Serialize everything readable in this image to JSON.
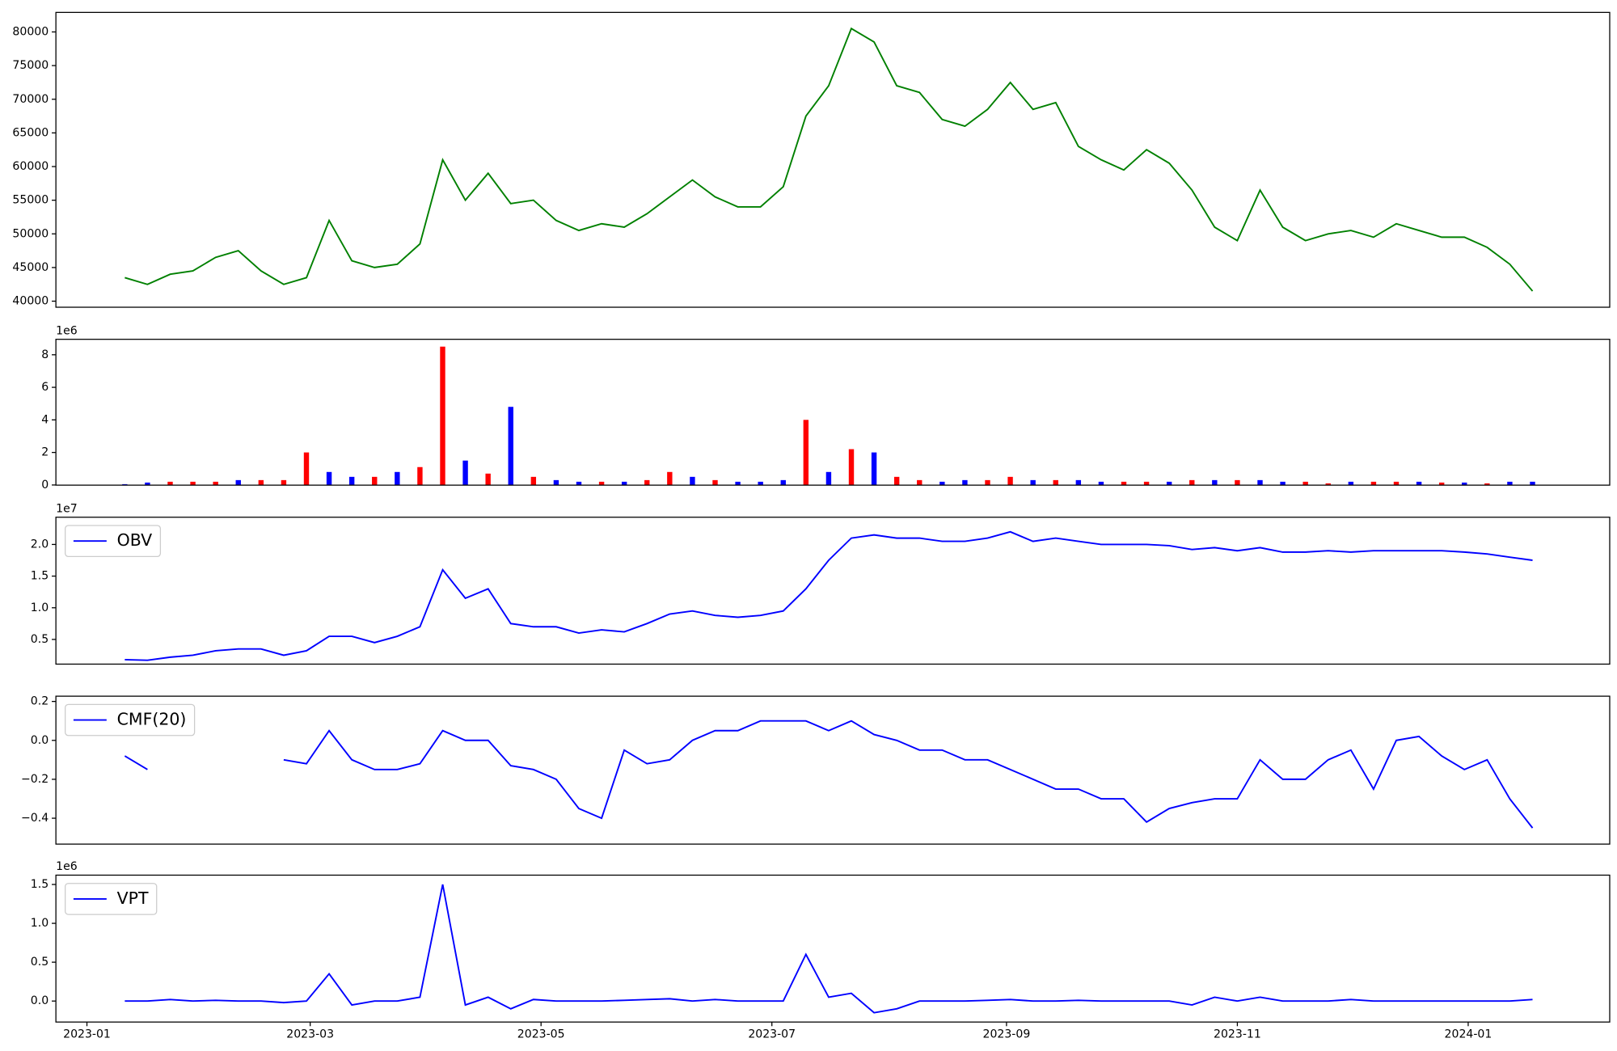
{
  "chart_data": [
    {
      "type": "line",
      "x": [
        10,
        16,
        22,
        28,
        34,
        40,
        46,
        52,
        58,
        64,
        70,
        76,
        82,
        88,
        94,
        100,
        106,
        112,
        118,
        124,
        130,
        136,
        142,
        148,
        154,
        160,
        166,
        172,
        178,
        184,
        190,
        196,
        202,
        208,
        214,
        220,
        226,
        232,
        238,
        244,
        250,
        256,
        262,
        268,
        274,
        280,
        286,
        292,
        298,
        304,
        310,
        316,
        322,
        328,
        334,
        340,
        346,
        352,
        358,
        364,
        370,
        376,
        382
      ],
      "series": [
        {
          "color": "green",
          "values": [
            43500,
            42500,
            44000,
            44500,
            46500,
            47500,
            44500,
            42500,
            43500,
            52000,
            46000,
            45000,
            45500,
            48500,
            61000,
            55000,
            59000,
            54500,
            55000,
            52000,
            50500,
            51500,
            51000,
            53000,
            55500,
            58000,
            55500,
            54000,
            54000,
            57000,
            67500,
            72000,
            80500,
            78500,
            72000,
            71000,
            67000,
            66000,
            68500,
            72500,
            68500,
            69500,
            63000,
            61000,
            59500,
            62500,
            60500,
            56500,
            51000,
            49000,
            56500,
            51000,
            49000,
            50000,
            50500,
            49500,
            51500,
            50500,
            49500,
            49500,
            48000,
            45500,
            41500
          ]
        }
      ],
      "xlim": [
        -8.2,
        402.4
      ],
      "ylim": [
        39100,
        82900
      ],
      "yticks": [
        40000,
        45000,
        50000,
        55000,
        60000,
        65000,
        70000,
        75000,
        80000
      ]
    },
    {
      "type": "bar",
      "x": [
        10,
        16,
        22,
        28,
        34,
        40,
        46,
        52,
        58,
        64,
        70,
        76,
        82,
        88,
        94,
        100,
        106,
        112,
        118,
        124,
        130,
        136,
        142,
        148,
        154,
        160,
        166,
        172,
        178,
        184,
        190,
        196,
        202,
        208,
        214,
        220,
        226,
        232,
        238,
        244,
        250,
        256,
        262,
        268,
        274,
        280,
        286,
        292,
        298,
        304,
        310,
        316,
        322,
        328,
        334,
        340,
        346,
        352,
        358,
        364,
        370,
        376,
        382
      ],
      "values": [
        50000,
        150000,
        200000,
        200000,
        200000,
        300000,
        300000,
        300000,
        2000000,
        800000,
        500000,
        500000,
        800000,
        1100000,
        8500000,
        1500000,
        700000,
        4800000,
        500000,
        300000,
        200000,
        200000,
        200000,
        300000,
        800000,
        500000,
        300000,
        200000,
        200000,
        300000,
        4000000,
        800000,
        2200000,
        2000000,
        500000,
        300000,
        200000,
        300000,
        300000,
        500000,
        300000,
        300000,
        300000,
        200000,
        200000,
        200000,
        200000,
        300000,
        300000,
        300000,
        300000,
        200000,
        200000,
        100000,
        200000,
        200000,
        200000,
        200000,
        150000,
        150000,
        100000,
        200000,
        200000
      ],
      "colors": [
        "blue",
        "blue",
        "red",
        "red",
        "red",
        "blue",
        "red",
        "red",
        "red",
        "blue",
        "blue",
        "red",
        "blue",
        "red",
        "red",
        "blue",
        "red",
        "blue",
        "red",
        "blue",
        "blue",
        "red",
        "blue",
        "red",
        "red",
        "blue",
        "red",
        "blue",
        "blue",
        "blue",
        "red",
        "blue",
        "red",
        "blue",
        "red",
        "red",
        "blue",
        "blue",
        "red",
        "red",
        "blue",
        "red",
        "blue",
        "blue",
        "red",
        "red",
        "blue",
        "red",
        "blue",
        "red",
        "blue",
        "blue",
        "red",
        "red",
        "blue",
        "red",
        "red",
        "blue",
        "red",
        "blue",
        "red",
        "blue",
        "blue"
      ],
      "xlim": [
        -8.2,
        402.4
      ],
      "ylim": [
        -10000,
        8950000
      ],
      "offset_label": "1e6",
      "yticks": [
        {
          "value": 0,
          "label": "0"
        },
        {
          "value": 2000000,
          "label": "2"
        },
        {
          "value": 4000000,
          "label": "4"
        },
        {
          "value": 6000000,
          "label": "6"
        },
        {
          "value": 8000000,
          "label": "8"
        }
      ]
    },
    {
      "type": "line",
      "x": [
        10,
        16,
        22,
        28,
        34,
        40,
        46,
        52,
        58,
        64,
        70,
        76,
        82,
        88,
        94,
        100,
        106,
        112,
        118,
        124,
        130,
        136,
        142,
        148,
        154,
        160,
        166,
        172,
        178,
        184,
        190,
        196,
        202,
        208,
        214,
        220,
        226,
        232,
        238,
        244,
        250,
        256,
        262,
        268,
        274,
        280,
        286,
        292,
        298,
        304,
        310,
        316,
        322,
        328,
        334,
        340,
        346,
        352,
        358,
        364,
        370,
        376,
        382
      ],
      "series": [
        {
          "name": "OBV",
          "color": "blue",
          "values": [
            1800000,
            1700000,
            2200000,
            2500000,
            3200000,
            3500000,
            3500000,
            2500000,
            3200000,
            5500000,
            5500000,
            4500000,
            5500000,
            7000000,
            16000000,
            11500000,
            13000000,
            7500000,
            7000000,
            7000000,
            6000000,
            6500000,
            6200000,
            7500000,
            9000000,
            9500000,
            8800000,
            8500000,
            8800000,
            9500000,
            13000000,
            17500000,
            21000000,
            21500000,
            21000000,
            21000000,
            20500000,
            20500000,
            21000000,
            22000000,
            20500000,
            21000000,
            20500000,
            20000000,
            20000000,
            20000000,
            19800000,
            19200000,
            19500000,
            19000000,
            19500000,
            18800000,
            18800000,
            19000000,
            18800000,
            19000000,
            19000000,
            19000000,
            19000000,
            18800000,
            18500000,
            18000000,
            17500000
          ]
        }
      ],
      "xlim": [
        -8.2,
        402.4
      ],
      "ylim": [
        1100000,
        24300000
      ],
      "offset_label": "1e7",
      "legend": "upper left",
      "yticks": [
        {
          "value": 5000000,
          "label": "0.5"
        },
        {
          "value": 10000000,
          "label": "1.0"
        },
        {
          "value": 15000000,
          "label": "1.5"
        },
        {
          "value": 20000000,
          "label": "2.0"
        }
      ]
    },
    {
      "type": "line",
      "x": [
        10,
        16,
        22,
        28,
        34,
        40,
        46,
        52,
        58,
        64,
        70,
        76,
        82,
        88,
        94,
        100,
        106,
        112,
        118,
        124,
        130,
        136,
        142,
        148,
        154,
        160,
        166,
        172,
        178,
        184,
        190,
        196,
        202,
        208,
        214,
        220,
        226,
        232,
        238,
        244,
        250,
        256,
        262,
        268,
        274,
        280,
        286,
        292,
        298,
        304,
        310,
        316,
        322,
        328,
        334,
        340,
        346,
        352,
        358,
        364,
        370,
        376,
        382
      ],
      "series": [
        {
          "name": "CMF(20)",
          "color": "blue",
          "values": [
            -0.08,
            -0.15,
            null,
            null,
            null,
            null,
            null,
            -0.1,
            -0.12,
            0.05,
            -0.1,
            -0.15,
            -0.15,
            -0.12,
            0.05,
            0,
            0,
            -0.13,
            -0.15,
            -0.2,
            -0.35,
            -0.4,
            -0.05,
            -0.12,
            -0.1,
            0,
            0.05,
            0.05,
            0.1,
            0.1,
            0.1,
            0.05,
            0.1,
            0.03,
            0,
            -0.05,
            -0.05,
            -0.1,
            -0.1,
            -0.15,
            -0.2,
            -0.25,
            -0.25,
            -0.3,
            -0.3,
            -0.42,
            -0.35,
            -0.32,
            -0.3,
            -0.3,
            -0.1,
            -0.2,
            -0.2,
            -0.1,
            -0.05,
            -0.25,
            0,
            0.02,
            -0.08,
            -0.15,
            -0.1,
            -0.3,
            -0.45
          ]
        }
      ],
      "xlim": [
        -8.2,
        402.4
      ],
      "ylim": [
        -0.533,
        0.227
      ],
      "legend": "upper left",
      "yticks": [
        {
          "value": -0.4,
          "label": "−0.4"
        },
        {
          "value": -0.2,
          "label": "−0.2"
        },
        {
          "value": 0,
          "label": "0.0"
        },
        0.2
      ]
    },
    {
      "type": "line",
      "x": [
        10,
        16,
        22,
        28,
        34,
        40,
        46,
        52,
        58,
        64,
        70,
        76,
        82,
        88,
        94,
        100,
        106,
        112,
        118,
        124,
        130,
        136,
        142,
        148,
        154,
        160,
        166,
        172,
        178,
        184,
        190,
        196,
        202,
        208,
        214,
        220,
        226,
        232,
        238,
        244,
        250,
        256,
        262,
        268,
        274,
        280,
        286,
        292,
        298,
        304,
        310,
        316,
        322,
        328,
        334,
        340,
        346,
        352,
        358,
        364,
        370,
        376,
        382
      ],
      "series": [
        {
          "name": "VPT",
          "color": "blue",
          "values": [
            0,
            0,
            20000,
            0,
            10000,
            0,
            0,
            -20000,
            0,
            350000,
            -50000,
            0,
            0,
            50000,
            1500000,
            -50000,
            50000,
            -100000,
            20000,
            0,
            0,
            0,
            10000,
            20000,
            30000,
            0,
            20000,
            0,
            0,
            0,
            600000,
            50000,
            100000,
            -150000,
            -100000,
            0,
            0,
            0,
            10000,
            20000,
            0,
            0,
            10000,
            0,
            0,
            0,
            0,
            -50000,
            50000,
            0,
            50000,
            0,
            0,
            0,
            20000,
            0,
            0,
            0,
            0,
            0,
            0,
            0,
            20000
          ]
        }
      ],
      "xlim": [
        -8.2,
        402.4
      ],
      "ylim": [
        -270000,
        1620000
      ],
      "offset_label": "1e6",
      "legend": "upper left",
      "yticks": [
        {
          "value": 0,
          "label": "0.0"
        },
        {
          "value": 500000,
          "label": "0.5"
        },
        {
          "value": 1000000,
          "label": "1.0"
        },
        {
          "value": 1500000,
          "label": "1.5"
        }
      ],
      "xticks": [
        {
          "value": 0,
          "label": "2023-01"
        },
        {
          "value": 59,
          "label": "2023-03"
        },
        {
          "value": 120,
          "label": "2023-05"
        },
        {
          "value": 181,
          "label": "2023-07"
        },
        {
          "value": 243,
          "label": "2023-09"
        },
        {
          "value": 304,
          "label": "2023-11"
        },
        {
          "value": 365,
          "label": "2024-01"
        }
      ]
    }
  ]
}
